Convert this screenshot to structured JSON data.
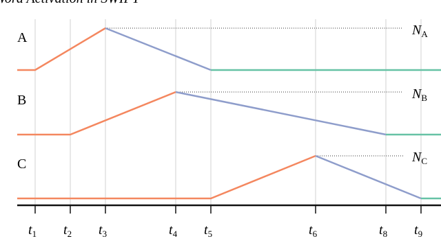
{
  "title": "Word Activation in SWIFT",
  "rows": [
    {
      "label": "A",
      "threshold": {
        "base": "N",
        "sub": "A"
      }
    },
    {
      "label": "B",
      "threshold": {
        "base": "N",
        "sub": "B"
      }
    },
    {
      "label": "C",
      "threshold": {
        "base": "N",
        "sub": "C"
      }
    }
  ],
  "ticks": [
    {
      "base": "t",
      "sub": "1"
    },
    {
      "base": "t",
      "sub": "2"
    },
    {
      "base": "t",
      "sub": "3"
    },
    {
      "base": "t",
      "sub": "4"
    },
    {
      "base": "t",
      "sub": "5"
    },
    {
      "base": "t",
      "sub": "6"
    },
    {
      "base": "t",
      "sub": "8"
    },
    {
      "base": "t",
      "sub": "9"
    }
  ]
}
